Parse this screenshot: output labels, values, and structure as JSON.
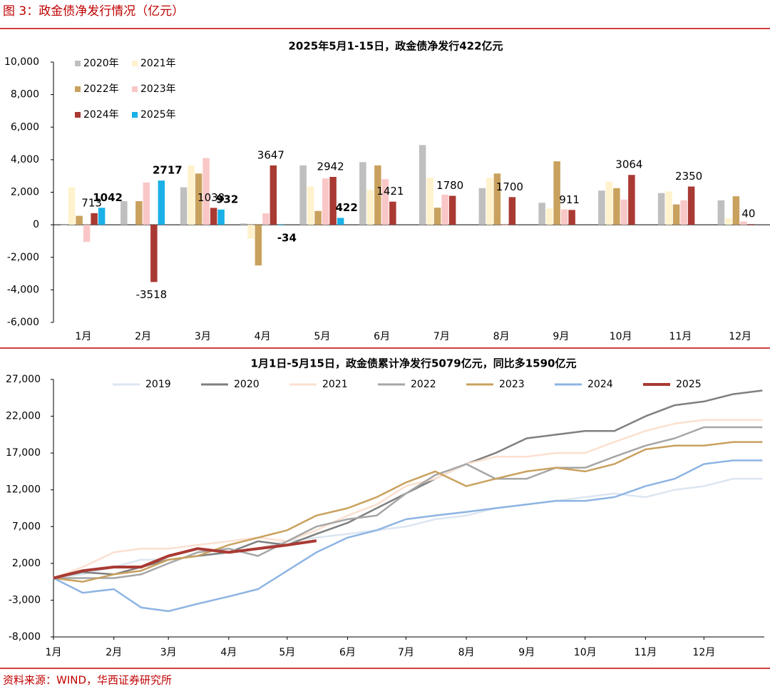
{
  "title": "图 3：政金债净发行情况（亿元）",
  "source": "资料来源：WIND，华西证券研究所",
  "chart_data": [
    {
      "type": "bar",
      "title": "2025年5月1-15日，政金债净发行422亿元",
      "categories": [
        "1月",
        "2月",
        "3月",
        "4月",
        "5月",
        "6月",
        "7月",
        "8月",
        "9月",
        "10月",
        "11月",
        "12月"
      ],
      "ylim": [
        -6000,
        10000
      ],
      "yticks": [
        {
          "value": -6000,
          "label": "-6,000"
        },
        {
          "value": -4000,
          "label": "-4,000"
        },
        {
          "value": -2000,
          "label": "-2,000"
        },
        0,
        {
          "value": 2000,
          "label": "2,000"
        },
        {
          "value": 4000,
          "label": "4,000"
        },
        {
          "value": 6000,
          "label": "6,000"
        },
        {
          "value": 8000,
          "label": "8,000"
        },
        {
          "value": 10000,
          "label": "10,000"
        }
      ],
      "legend": "top-left",
      "series": [
        {
          "name": "2020年",
          "color": "#bfbfbf",
          "values": [
            -20,
            1450,
            2300,
            80,
            3650,
            3850,
            4900,
            2250,
            1350,
            2100,
            1950,
            1500
          ]
        },
        {
          "name": "2021年",
          "color": "#fff2cc",
          "values": [
            2300,
            0,
            3650,
            -850,
            2350,
            2150,
            2900,
            2900,
            1000,
            2650,
            2050,
            400
          ]
        },
        {
          "name": "2022年",
          "color": "#c9a15e",
          "values": [
            550,
            1450,
            3150,
            -2500,
            850,
            3650,
            1050,
            3150,
            3900,
            2250,
            1250,
            1750
          ]
        },
        {
          "name": "2023年",
          "color": "#f9c7c7",
          "values": [
            -1050,
            2600,
            4100,
            700,
            2850,
            2800,
            1850,
            -50,
            950,
            1550,
            1500,
            200
          ]
        },
        {
          "name": "2024年",
          "color": "#a93a33",
          "data_labels": true,
          "label_color": "#000000",
          "values": [
            713,
            -3518,
            1038,
            3647,
            2942,
            1421,
            1780,
            1700,
            911,
            3064,
            2350,
            40
          ]
        },
        {
          "name": "2025年",
          "color": "#1ab0e8",
          "data_labels": true,
          "label_color": "#c00000",
          "values": [
            1042,
            2717,
            932,
            -34,
            422,
            null,
            null,
            null,
            null,
            null,
            null,
            null
          ]
        }
      ]
    },
    {
      "type": "line",
      "title": "1月1日-5月15日，政金债累计净发行5079亿元，同比多1590亿元",
      "x": [
        0,
        15,
        31,
        45,
        59,
        74,
        90,
        105,
        120,
        135,
        151,
        166,
        181,
        196,
        212,
        227,
        243,
        258,
        273,
        288,
        304,
        319,
        334,
        349,
        364
      ],
      "xlim": [
        0,
        365
      ],
      "xticks": [
        {
          "value": 0,
          "label": "1月"
        },
        {
          "value": 31,
          "label": "2月"
        },
        {
          "value": 59,
          "label": "3月"
        },
        {
          "value": 90,
          "label": "4月"
        },
        {
          "value": 120,
          "label": "5月"
        },
        {
          "value": 151,
          "label": "6月"
        },
        {
          "value": 181,
          "label": "7月"
        },
        {
          "value": 212,
          "label": "8月"
        },
        {
          "value": 243,
          "label": "9月"
        },
        {
          "value": 273,
          "label": "10月"
        },
        {
          "value": 304,
          "label": "11月"
        },
        {
          "value": 334,
          "label": "12月"
        }
      ],
      "ylim": [
        -8000,
        27000
      ],
      "yticks": [
        {
          "value": -8000,
          "label": "-8,000"
        },
        {
          "value": -3000,
          "label": "-3,000"
        },
        {
          "value": 2000,
          "label": "2,000"
        },
        {
          "value": 7000,
          "label": "7,000"
        },
        {
          "value": 12000,
          "label": "12,000"
        },
        {
          "value": 17000,
          "label": "17,000"
        },
        {
          "value": 22000,
          "label": "22,000"
        },
        {
          "value": 27000,
          "label": "27,000"
        }
      ],
      "legend": "top",
      "series": [
        {
          "name": "2019",
          "color": "#dce6f1",
          "values": [
            0,
            500,
            1500,
            2500,
            2500,
            3000,
            3500,
            4000,
            5000,
            5500,
            6000,
            6500,
            7000,
            8000,
            8500,
            9500,
            10000,
            10500,
            11000,
            11500,
            11000,
            12000,
            12500,
            13500,
            13500
          ]
        },
        {
          "name": "2020",
          "color": "#7f7f7f",
          "values": [
            0,
            800,
            500,
            1500,
            2500,
            3000,
            3500,
            5000,
            4500,
            6000,
            7500,
            9500,
            11500,
            13500,
            15500,
            17000,
            19000,
            19500,
            20000,
            20000,
            22000,
            23500,
            24000,
            25000,
            25500
          ]
        },
        {
          "name": "2021",
          "color": "#fbe0d0",
          "values": [
            0,
            1500,
            3500,
            4000,
            4000,
            4500,
            5000,
            5500,
            5000,
            6500,
            8500,
            10000,
            12500,
            13500,
            15500,
            16500,
            16500,
            17000,
            17000,
            18500,
            20000,
            21000,
            21500,
            21500,
            21500
          ]
        },
        {
          "name": "2022",
          "color": "#a6a6a6",
          "values": [
            0,
            0,
            0,
            500,
            2000,
            3500,
            4000,
            3000,
            5000,
            7000,
            8000,
            8500,
            11500,
            14000,
            15500,
            13500,
            13500,
            15000,
            15000,
            16500,
            18000,
            19000,
            20500,
            20500,
            20500
          ]
        },
        {
          "name": "2023",
          "color": "#c9a15e",
          "values": [
            0,
            -500,
            500,
            1000,
            2500,
            3000,
            4500,
            5500,
            6500,
            8500,
            9500,
            11000,
            13000,
            14500,
            12500,
            13500,
            14500,
            15000,
            14500,
            15500,
            17500,
            18000,
            18000,
            18500,
            18500
          ]
        },
        {
          "name": "2024",
          "color": "#8eb4e3",
          "values": [
            0,
            -2000,
            -1500,
            -4000,
            -4500,
            -3500,
            -2500,
            -1500,
            1000,
            3500,
            5500,
            6500,
            8000,
            8500,
            9000,
            9500,
            10000,
            10500,
            10500,
            11000,
            12500,
            13500,
            15500,
            16000,
            16000
          ]
        },
        {
          "name": "2025",
          "color": "#a93a33",
          "width": 4,
          "values": [
            0,
            1000,
            1500,
            1500,
            3000,
            4000,
            3500,
            4000,
            4500,
            5079,
            null,
            null,
            null,
            null,
            null,
            null,
            null,
            null,
            null,
            null,
            null,
            null,
            null,
            null,
            null
          ]
        }
      ]
    }
  ]
}
